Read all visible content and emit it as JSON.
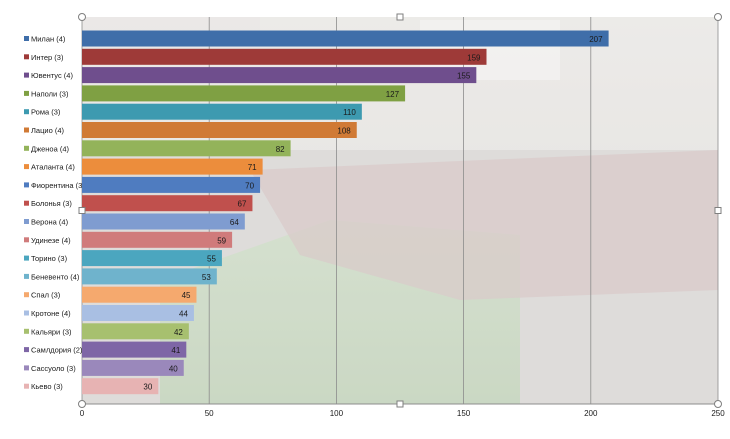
{
  "chart_data": {
    "type": "bar",
    "orientation": "horizontal",
    "categories": [
      "Милан (4)",
      "Интер (3)",
      "Ювентус (4)",
      "Наполи (3)",
      "Рома (3)",
      "Лацио (4)",
      "Дженоа (4)",
      "Аталанта (4)",
      "Фиорентина (3)",
      "Болонья (3)",
      "Верона (4)",
      "Удинезе (4)",
      "Торино (3)",
      "Беневенто (4)",
      "Спал (3)",
      "Кротоне (4)",
      "Кальяри (3)",
      "Самлдория (2)",
      "Сассуоло (3)",
      "Кьево (3)"
    ],
    "values": [
      207,
      159,
      155,
      127,
      110,
      108,
      82,
      71,
      70,
      67,
      64,
      59,
      55,
      53,
      45,
      44,
      42,
      41,
      40,
      30
    ],
    "colors": [
      "#3f6ea9",
      "#9e3a38",
      "#6f4e8d",
      "#7fa043",
      "#3d9ab0",
      "#d07a35",
      "#93b35a",
      "#ec8d3c",
      "#4f7cc0",
      "#c0504d",
      "#7f9cd0",
      "#d07b7b",
      "#4ba6bf",
      "#6fb3cc",
      "#f5a96e",
      "#a9bfe3",
      "#a7c06f",
      "#7e66a6",
      "#9a88bb",
      "#e7b3b3"
    ],
    "xlim": [
      0,
      250
    ],
    "xticks": [
      "0",
      "50",
      "100",
      "150",
      "200",
      "250"
    ],
    "grid": "vertical",
    "legend": "left",
    "title": "",
    "xlabel": "",
    "ylabel": ""
  }
}
